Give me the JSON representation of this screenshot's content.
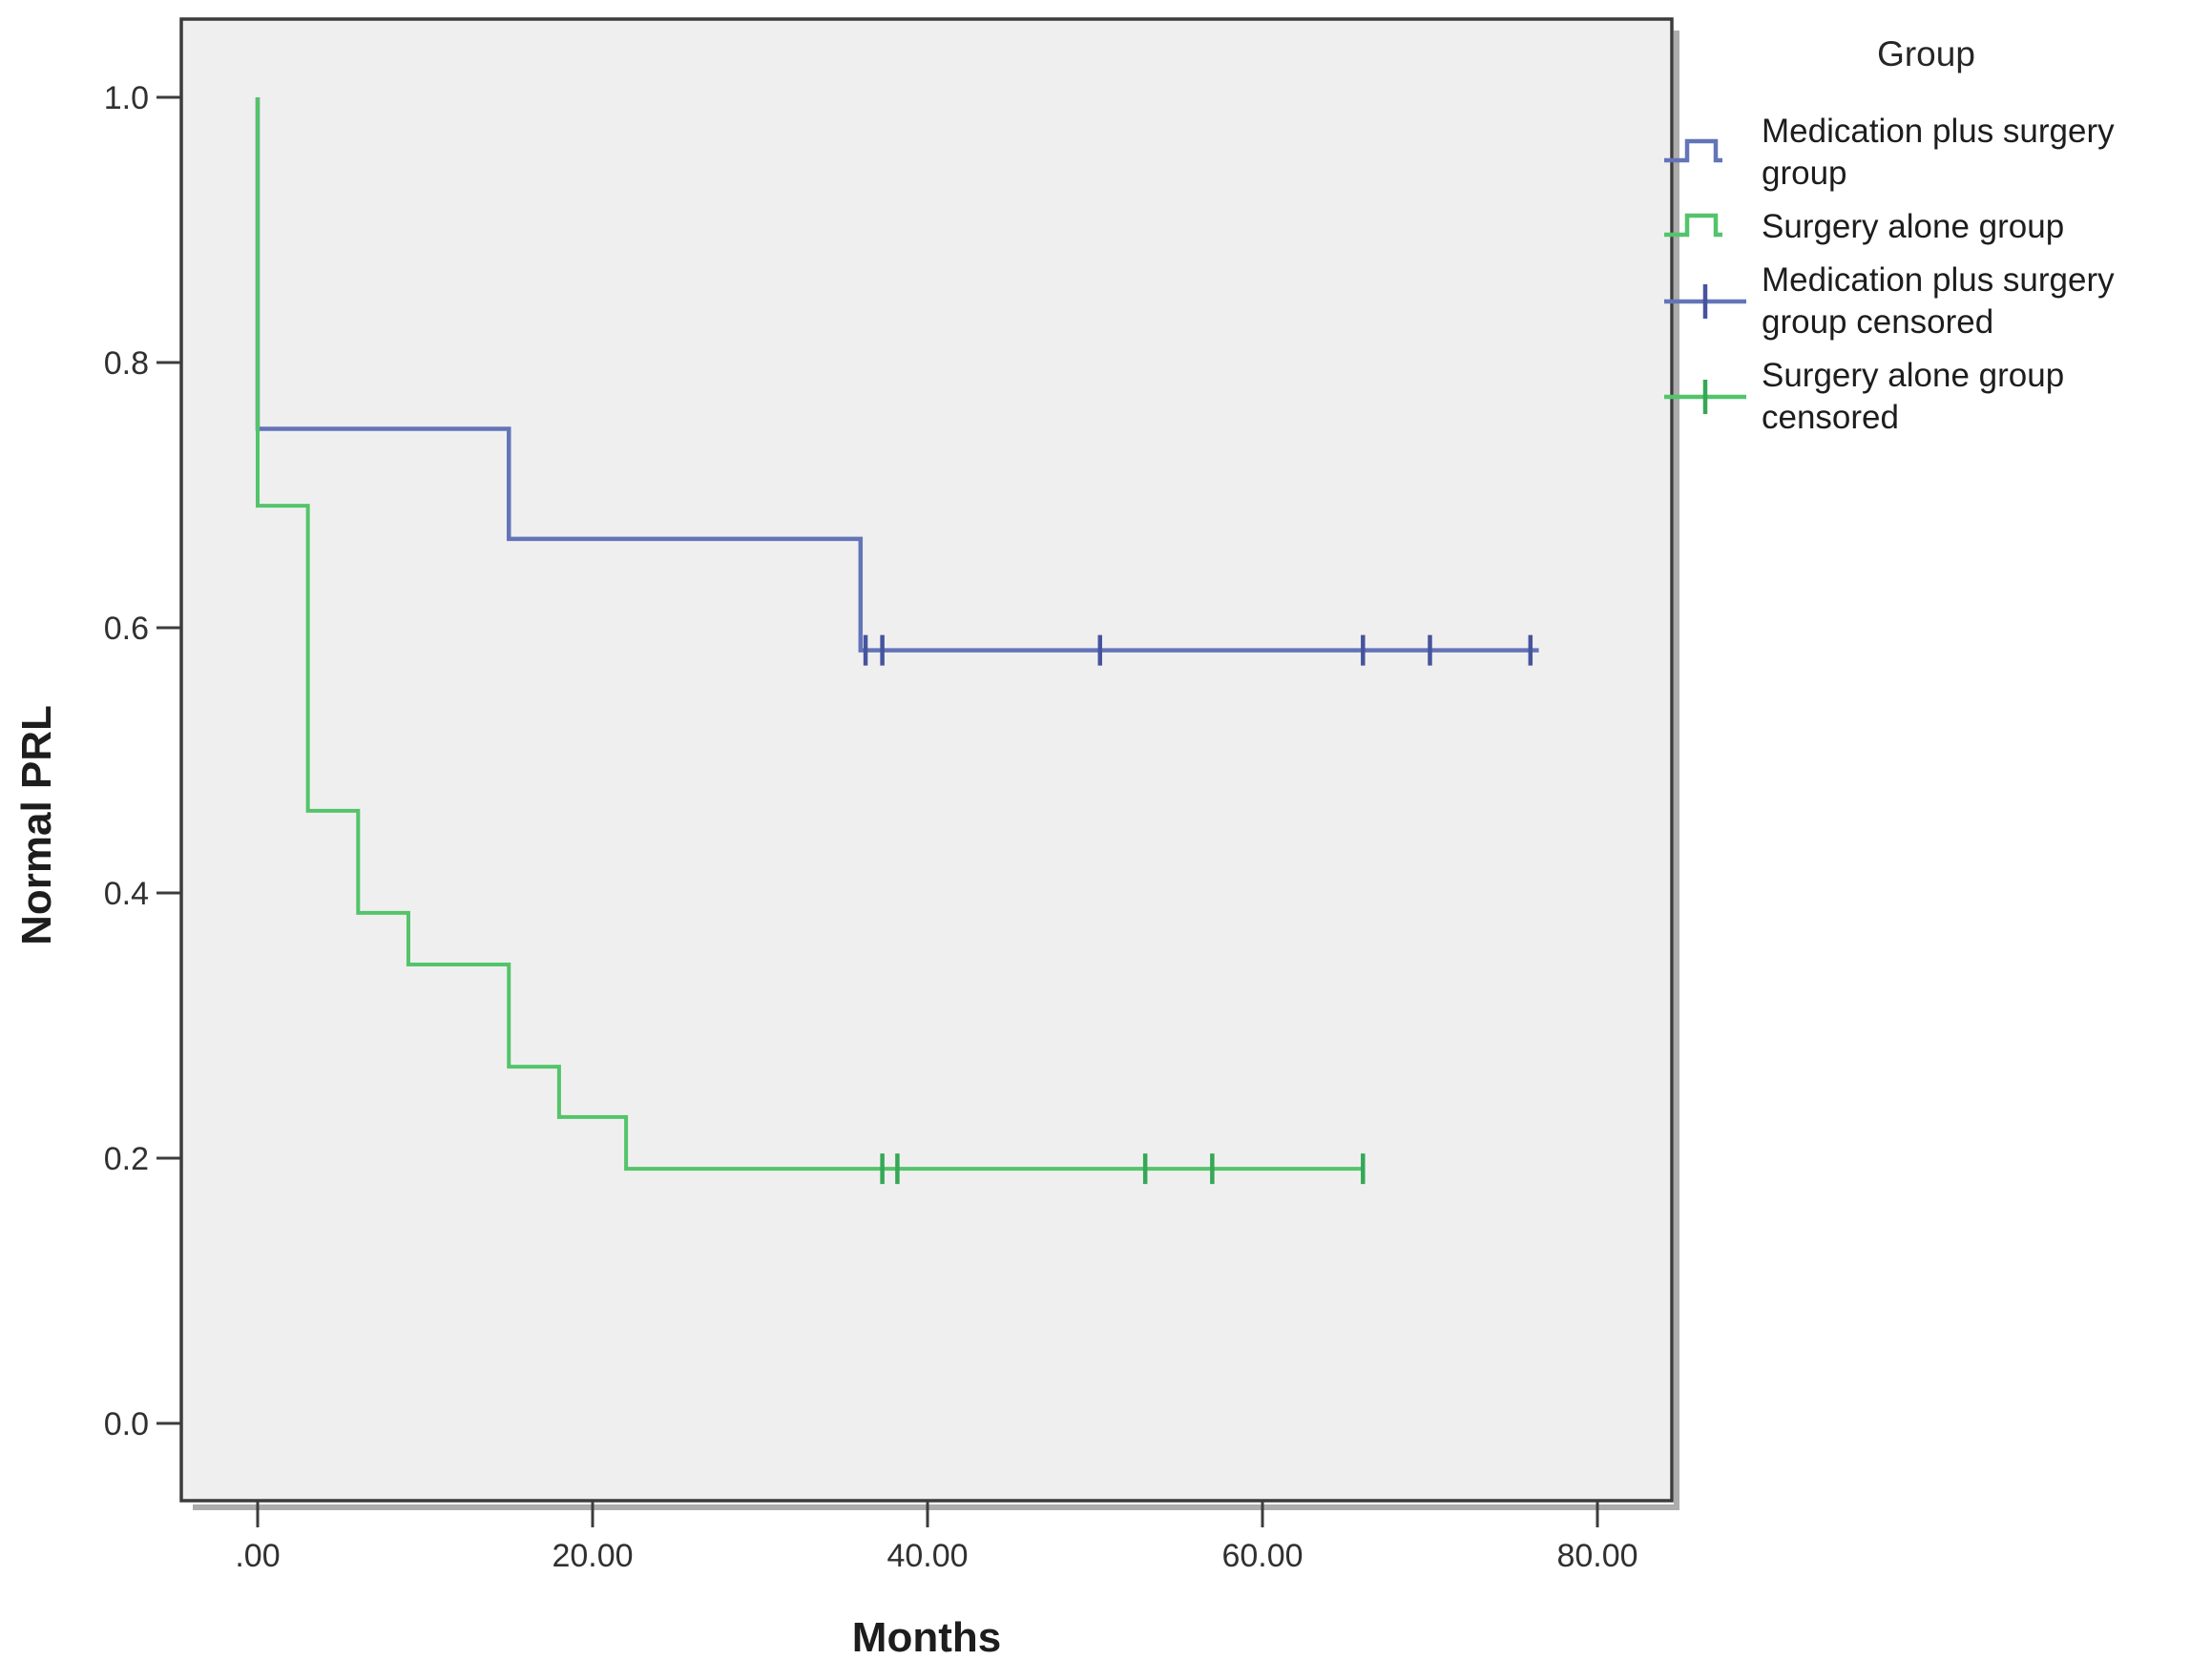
{
  "colors": {
    "medication_line": "#6374B8",
    "medication_censor": "#46549E",
    "surgery_line": "#53C46A",
    "surgery_censor": "#35A855",
    "plot_bg": "#F0EFEF",
    "border": "#3C3C3C",
    "shadow": "#ACACAC",
    "tick_text": "#303030",
    "text": "#1d1d1d"
  },
  "legend": {
    "title": "Group",
    "items": [
      {
        "label": "Medication plus surgery group",
        "lines": [
          "Medication plus surgery",
          "group"
        ],
        "swatch": "step-blue"
      },
      {
        "label": "Surgery alone group",
        "lines": [
          "Surgery alone group"
        ],
        "swatch": "step-green"
      },
      {
        "label": "Medication plus surgery group censored",
        "lines": [
          "Medication plus surgery",
          "group censored"
        ],
        "swatch": "censor-blue"
      },
      {
        "label": "Surgery alone group censored",
        "lines": [
          "Surgery alone group",
          "censored"
        ],
        "swatch": "censor-green"
      }
    ]
  },
  "chart_data": {
    "type": "line",
    "subtype": "kaplan-meier-step",
    "interpolation": "step-post",
    "title": "",
    "xlabel": "Months",
    "ylabel": "Normal PRL",
    "xlim": [
      -4.5,
      84.5
    ],
    "ylim": [
      -0.06,
      1.06
    ],
    "grid": false,
    "legend_position": "right",
    "x_ticks": [
      {
        "value": 0,
        "label": ".00"
      },
      {
        "value": 20,
        "label": "20.00"
      },
      {
        "value": 40,
        "label": "40.00"
      },
      {
        "value": 60,
        "label": "60.00"
      },
      {
        "value": 80,
        "label": "80.00"
      }
    ],
    "y_ticks": [
      {
        "value": 1.0,
        "label": "1.0"
      },
      {
        "value": 0.8,
        "label": "0.8"
      },
      {
        "value": 0.6,
        "label": "0.6"
      },
      {
        "value": 0.4,
        "label": "0.4"
      },
      {
        "value": 0.2,
        "label": "0.2"
      },
      {
        "value": 0.0,
        "label": "0.0"
      }
    ],
    "series": [
      {
        "name": "Medication plus surgery group",
        "color_key": "medication_line",
        "censor_color_key": "medication_censor",
        "stroke_width": 4.5,
        "points": [
          [
            0,
            1.0
          ],
          [
            0,
            0.75
          ],
          [
            15,
            0.75
          ],
          [
            15,
            0.667
          ],
          [
            36,
            0.667
          ],
          [
            36,
            0.583
          ],
          [
            76.5,
            0.583
          ]
        ],
        "censored": [
          {
            "t": 36.3,
            "v": 0.583
          },
          {
            "t": 37.3,
            "v": 0.583
          },
          {
            "t": 50.3,
            "v": 0.583
          },
          {
            "t": 66,
            "v": 0.583
          },
          {
            "t": 70,
            "v": 0.583
          },
          {
            "t": 76,
            "v": 0.583
          }
        ]
      },
      {
        "name": "Surgery alone group",
        "color_key": "surgery_line",
        "censor_color_key": "surgery_censor",
        "stroke_width": 4,
        "points": [
          [
            0,
            1.0
          ],
          [
            0,
            0.692
          ],
          [
            3,
            0.692
          ],
          [
            3,
            0.462
          ],
          [
            6,
            0.462
          ],
          [
            6,
            0.385
          ],
          [
            9,
            0.385
          ],
          [
            9,
            0.346
          ],
          [
            15,
            0.346
          ],
          [
            15,
            0.269
          ],
          [
            18,
            0.269
          ],
          [
            18,
            0.231
          ],
          [
            22,
            0.231
          ],
          [
            22,
            0.192
          ],
          [
            66,
            0.192
          ]
        ],
        "censored": [
          {
            "t": 37.3,
            "v": 0.192
          },
          {
            "t": 38.2,
            "v": 0.192
          },
          {
            "t": 53,
            "v": 0.192
          },
          {
            "t": 57,
            "v": 0.192
          },
          {
            "t": 66,
            "v": 0.192
          }
        ]
      }
    ]
  }
}
